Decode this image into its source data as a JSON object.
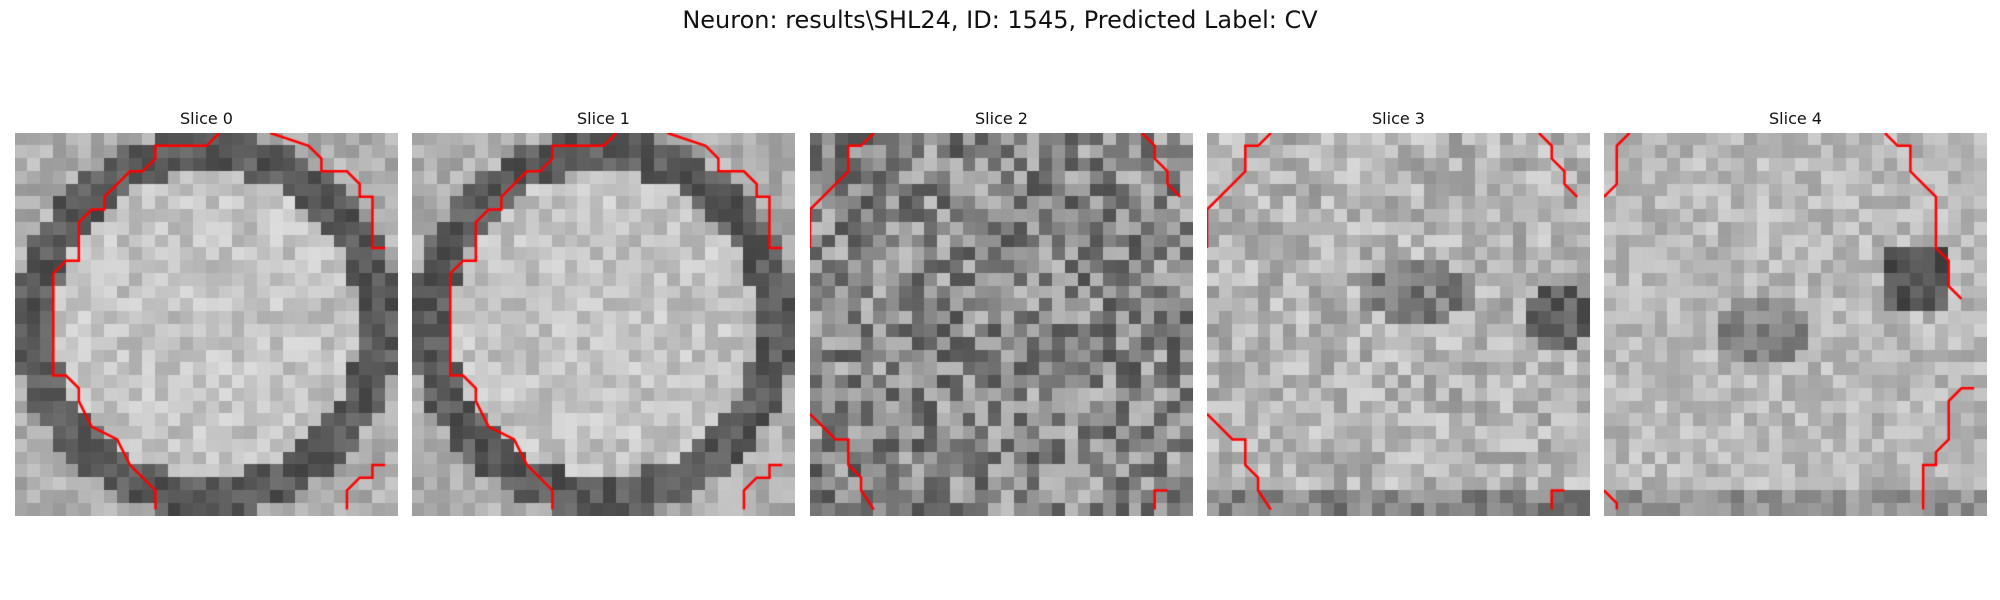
{
  "figure": {
    "title": "Neuron: results\\SHL24, ID: 1545, Predicted Label: CV"
  },
  "panels": [
    {
      "title": "Slice 0",
      "kind": "bright-disk-dark-ring",
      "seed": 11,
      "roi_shape": "left-arc"
    },
    {
      "title": "Slice 1",
      "kind": "bright-disk-dark-ring",
      "seed": 23,
      "roi_shape": "left-arc-faint"
    },
    {
      "title": "Slice 2",
      "kind": "noisy-mid",
      "seed": 37,
      "roi_shape": "corner-arcs"
    },
    {
      "title": "Slice 3",
      "kind": "bright-with-dark-blobs",
      "seed": 41,
      "roi_shape": "corner-arcs"
    },
    {
      "title": "Slice 4",
      "kind": "bright-with-dark-right",
      "seed": 53,
      "roi_shape": "right-arc"
    }
  ],
  "colors": {
    "roi_contour": "#ff0000"
  },
  "icons": []
}
